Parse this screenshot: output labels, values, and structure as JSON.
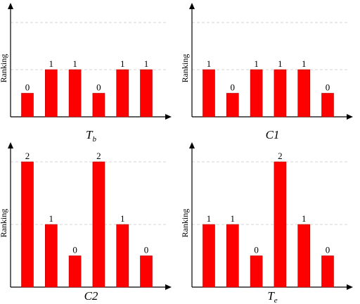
{
  "chart_data": [
    {
      "type": "bar",
      "title": "T",
      "title_subscript": "b",
      "ylabel": "Ranking",
      "xlabel": "",
      "ylim": [
        0,
        2
      ],
      "values": [
        0,
        1,
        1,
        0,
        1,
        1
      ],
      "data_labels": [
        "0",
        "1",
        "1",
        "0",
        "1",
        "1"
      ],
      "grid": true,
      "bar_color": "#ff0000"
    },
    {
      "type": "bar",
      "title": "C1",
      "title_subscript": "",
      "ylabel": "Ranking",
      "xlabel": "",
      "ylim": [
        0,
        2
      ],
      "values": [
        1,
        0,
        1,
        1,
        1,
        0
      ],
      "data_labels": [
        "1",
        "0",
        "1",
        "1",
        "1",
        "0"
      ],
      "grid": true,
      "bar_color": "#ff0000"
    },
    {
      "type": "bar",
      "title": "C2",
      "title_subscript": "",
      "ylabel": "Ranking",
      "xlabel": "",
      "ylim": [
        0,
        2
      ],
      "values": [
        2,
        1,
        0,
        2,
        1,
        0
      ],
      "data_labels": [
        "2",
        "1",
        "0",
        "2",
        "1",
        "0"
      ],
      "grid": true,
      "bar_color": "#ff0000"
    },
    {
      "type": "bar",
      "title": "T",
      "title_subscript": "e",
      "ylabel": "Ranking",
      "xlabel": "",
      "ylim": [
        0,
        2
      ],
      "values": [
        1,
        1,
        0,
        2,
        1,
        0
      ],
      "data_labels": [
        "1",
        "1",
        "0",
        "2",
        "1",
        "0"
      ],
      "grid": true,
      "bar_color": "#ff0000"
    }
  ]
}
